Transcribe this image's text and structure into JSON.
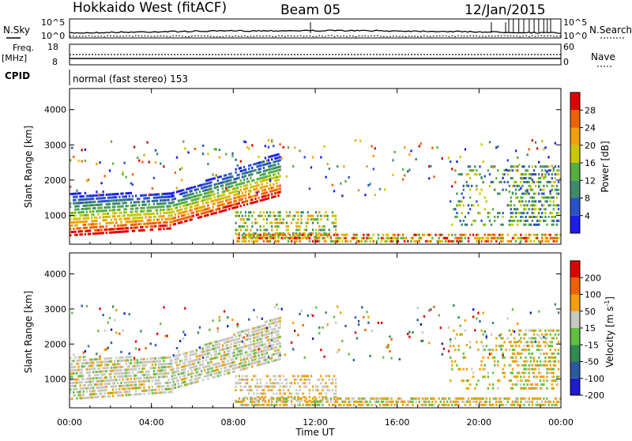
{
  "header": {
    "station": "Hokkaido West (fitACF)",
    "beam": "Beam 05",
    "date": "12/Jan/2015"
  },
  "noise_panel": {
    "left_label": "N.Sky",
    "right_label": "N.Search",
    "scale_top": "10^5",
    "scale_bottom": "10^0",
    "right_scale_top": "10^5",
    "right_scale_bottom": "10^0"
  },
  "freq_panel": {
    "label_line1": "Freq.",
    "label_line2": "[MHz]",
    "left_top": "18",
    "left_bottom": "8",
    "right_label": "Nave",
    "right_top": "60",
    "right_bottom": "0"
  },
  "cpid": {
    "label": "CPID",
    "text": "normal (fast stereo) 153"
  },
  "x_axis": {
    "label": "Time UT",
    "ticks": [
      "00:00",
      "04:00",
      "08:00",
      "12:00",
      "16:00",
      "20:00",
      "00:00"
    ]
  },
  "chart_data": [
    {
      "type": "heatmap",
      "quantity": "Power",
      "ylabel": "Slant Range [km]",
      "ylim": [
        180,
        4600
      ],
      "yticks": [
        "1000",
        "2000",
        "3000",
        "4000"
      ],
      "colorbar_title": "Power [dB]",
      "colorbar_ticks": [
        "28",
        "24",
        "20",
        "16",
        "12",
        "8",
        "4"
      ],
      "colors": [
        "#1c1cf0",
        "#2a52c8",
        "#3f8a6a",
        "#55b040",
        "#c8c800",
        "#f0a000",
        "#f06000",
        "#e00000"
      ]
    },
    {
      "type": "heatmap",
      "quantity": "Velocity",
      "ylabel": "Slant Range [km]",
      "ylim": [
        180,
        4600
      ],
      "yticks": [
        "1000",
        "2000",
        "3000",
        "4000"
      ],
      "colorbar_title": "Velocity [m s^-1]",
      "colorbar_ticks": [
        "200",
        "100",
        "50",
        "15",
        "-15",
        "-50",
        "-100",
        "-200"
      ],
      "colors": [
        "#1c1cd0",
        "#2a5aa0",
        "#2f8a50",
        "#60c040",
        "#c8c8c0",
        "#f0a000",
        "#f06000",
        "#e00000"
      ]
    }
  ]
}
